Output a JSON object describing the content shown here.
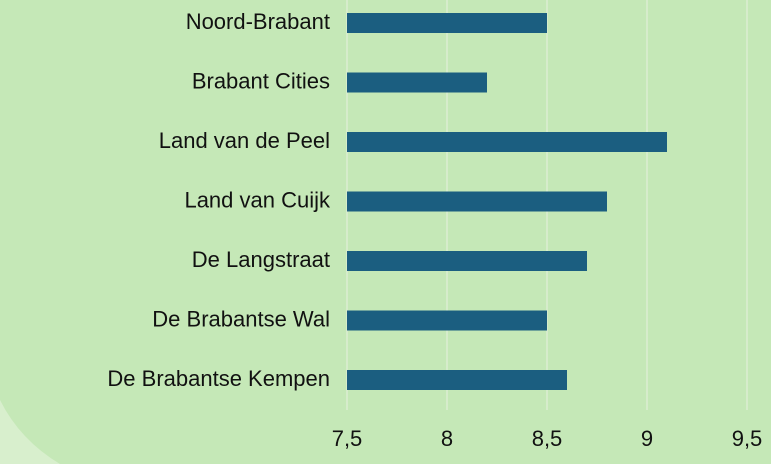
{
  "chart_data": {
    "type": "bar",
    "orientation": "horizontal",
    "categories": [
      "Noord-Brabant",
      "Brabant Cities",
      "Land van de Peel",
      "Land van Cuijk",
      "De Langstraat",
      "De Brabantse Wal",
      "De Brabantse Kempen"
    ],
    "values": [
      8.5,
      8.2,
      9.1,
      8.8,
      8.7,
      8.5,
      8.6
    ],
    "color": "#1b5e80",
    "xlim": [
      7.5,
      9.5
    ],
    "xticks": [
      {
        "value": 7.5,
        "label": "7,5"
      },
      8,
      {
        "value": 8.5,
        "label": "8,5"
      },
      9,
      {
        "value": 9.5,
        "label": "9,5"
      }
    ],
    "grid": true
  }
}
